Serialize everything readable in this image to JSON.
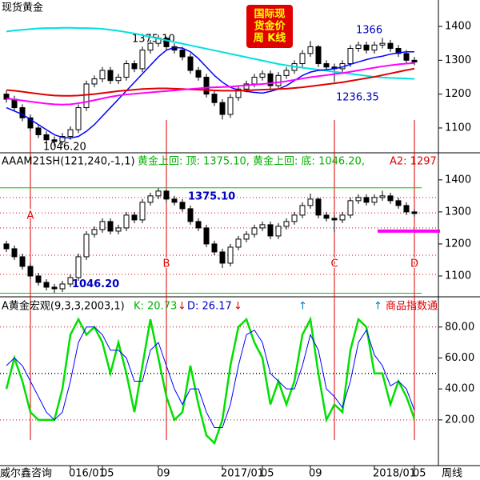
{
  "chart_data": [
    {
      "type": "candlestick",
      "title": "现货黄金",
      "color": "#000000",
      "open": [
        1200,
        1185,
        1160,
        1130,
        1100,
        1080,
        1065,
        1060,
        1075,
        1095,
        1160,
        1230,
        1245,
        1270,
        1240,
        1250,
        1290,
        1275,
        1330,
        1350,
        1365,
        1340,
        1330,
        1310,
        1270,
        1250,
        1200,
        1175,
        1140,
        1190,
        1215,
        1230,
        1250,
        1260,
        1225,
        1255,
        1270,
        1290,
        1320,
        1340,
        1290,
        1280,
        1275,
        1290,
        1335,
        1345,
        1330,
        1345,
        1350,
        1335,
        1320,
        1300
      ],
      "high": [
        1210,
        1195,
        1170,
        1140,
        1110,
        1090,
        1075,
        1085,
        1105,
        1170,
        1240,
        1255,
        1280,
        1280,
        1260,
        1300,
        1300,
        1340,
        1360,
        1375.1,
        1370,
        1350,
        1340,
        1320,
        1280,
        1260,
        1210,
        1185,
        1200,
        1225,
        1240,
        1260,
        1270,
        1270,
        1265,
        1280,
        1300,
        1330,
        1357,
        1345,
        1300,
        1290,
        1300,
        1345,
        1355,
        1355,
        1355,
        1366,
        1360,
        1345,
        1330,
        1310
      ],
      "low": [
        1175,
        1150,
        1120,
        1090,
        1070,
        1055,
        1046.2,
        1050,
        1065,
        1085,
        1150,
        1220,
        1235,
        1230,
        1230,
        1240,
        1265,
        1265,
        1320,
        1340,
        1330,
        1320,
        1300,
        1260,
        1240,
        1190,
        1165,
        1125,
        1130,
        1180,
        1205,
        1220,
        1240,
        1215,
        1215,
        1245,
        1260,
        1280,
        1310,
        1280,
        1270,
        1236.35,
        1265,
        1280,
        1325,
        1320,
        1320,
        1335,
        1325,
        1310,
        1290,
        1285
      ],
      "close": [
        1185,
        1160,
        1130,
        1100,
        1080,
        1065,
        1060,
        1075,
        1095,
        1160,
        1230,
        1245,
        1270,
        1240,
        1250,
        1290,
        1275,
        1330,
        1350,
        1365,
        1340,
        1330,
        1310,
        1270,
        1250,
        1200,
        1175,
        1140,
        1190,
        1215,
        1230,
        1250,
        1260,
        1225,
        1255,
        1270,
        1290,
        1320,
        1340,
        1290,
        1280,
        1275,
        1290,
        1335,
        1345,
        1330,
        1345,
        1350,
        1335,
        1320,
        1300,
        1295
      ],
      "series": [
        {
          "color": "#00e0e0",
          "values": [
            1385,
            1388,
            1390,
            1392,
            1394,
            1395,
            1395,
            1396,
            1396,
            1395,
            1395,
            1394,
            1393,
            1390,
            1387,
            1383,
            1379,
            1374,
            1369,
            1364,
            1359,
            1354,
            1349,
            1344,
            1339,
            1334,
            1329,
            1324,
            1319,
            1314,
            1309,
            1304,
            1299,
            1294,
            1289,
            1285,
            1281,
            1278,
            1275,
            1272,
            1269,
            1266,
            1263,
            1260,
            1257,
            1254,
            1251,
            1249,
            1248,
            1247,
            1246,
            1245
          ]
        },
        {
          "color": "#0000ff",
          "values": [
            1160,
            1150,
            1140,
            1125,
            1110,
            1095,
            1080,
            1072,
            1070,
            1075,
            1090,
            1110,
            1135,
            1160,
            1185,
            1210,
            1235,
            1260,
            1285,
            1310,
            1330,
            1338,
            1336,
            1325,
            1305,
            1280,
            1255,
            1235,
            1220,
            1212,
            1208,
            1205,
            1203,
            1208,
            1215,
            1225,
            1240,
            1255,
            1265,
            1270,
            1272,
            1275,
            1280,
            1288,
            1295,
            1302,
            1308,
            1312,
            1318,
            1322,
            1325,
            1325
          ]
        },
        {
          "color": "#e00000",
          "values": [
            1212,
            1210,
            1207,
            1204,
            1201,
            1198,
            1196,
            1195,
            1195,
            1196,
            1198,
            1200,
            1203,
            1206,
            1209,
            1211,
            1213,
            1215,
            1216,
            1217,
            1217,
            1216,
            1215,
            1214,
            1213,
            1212,
            1211,
            1210,
            1210,
            1210,
            1211,
            1212,
            1213,
            1214,
            1215,
            1216,
            1218,
            1220,
            1223,
            1226,
            1229,
            1232,
            1235,
            1239,
            1243,
            1247,
            1251,
            1256,
            1261,
            1266,
            1271,
            1275
          ]
        },
        {
          "color": "#ff00ff",
          "values": [
            1187,
            1184,
            1181,
            1178,
            1175,
            1172,
            1170,
            1169,
            1170,
            1173,
            1177,
            1182,
            1187,
            1192,
            1196,
            1199,
            1201,
            1203,
            1205,
            1207,
            1209,
            1211,
            1213,
            1215,
            1217,
            1219,
            1220,
            1221,
            1222,
            1224,
            1226,
            1228,
            1230,
            1232,
            1235,
            1238,
            1242,
            1246,
            1250,
            1253,
            1256,
            1259,
            1262,
            1266,
            1270,
            1274,
            1278,
            1282,
            1285,
            1288,
            1290,
            1292
          ]
        }
      ],
      "annotations": [
        "1375.10",
        "1366",
        "1236.35",
        "1046.20"
      ],
      "badge": [
        "国际现",
        "货金价",
        "周 K线"
      ],
      "ylim": [
        1029,
        1478
      ],
      "yticks": [
        1100,
        1200,
        1300,
        1400
      ]
    },
    {
      "type": "levels",
      "title": "AAAM21SH(121,240,-1,1)",
      "subtitle": "黄金上回: 顶: 1375.10, 黄金上回: 底: 1046.20,",
      "note": "A2: 1297.",
      "levels": [
        {
          "value": 1375.1,
          "label": "1375.10"
        },
        {
          "value": 1046.2,
          "label": "1046.20"
        }
      ],
      "reference_levels": [
        1345,
        1297,
        1250,
        1165,
        1105
      ],
      "target": {
        "value": 1240,
        "color": "#ff00ff"
      },
      "events": [
        {
          "label": "A",
          "at": 3
        },
        {
          "label": "B",
          "at": 20
        },
        {
          "label": "C",
          "at": 41
        },
        {
          "label": "D",
          "at": 51
        }
      ],
      "ylim": [
        1037.5,
        1482
      ],
      "yticks": [
        1100,
        1200,
        1300,
        1400
      ]
    },
    {
      "type": "line",
      "title": "A黄金宏观(9,3,3,2003,1)",
      "k_label": "K: 20.73",
      "d_label": "D: 26.17",
      "note": "商品指数通",
      "categories": [
        null,
        null,
        null,
        null,
        null,
        null,
        null,
        null,
        "016/01",
        null,
        null,
        null,
        "05",
        null,
        null,
        null,
        null,
        null,
        null,
        "09",
        null,
        null,
        null,
        null,
        null,
        null,
        null,
        "2017/01",
        null,
        null,
        null,
        null,
        "05",
        null,
        null,
        null,
        null,
        null,
        "09",
        null,
        null,
        null,
        null,
        null,
        null,
        null,
        "2018/01",
        null,
        null,
        null,
        null,
        "05"
      ],
      "series": [
        {
          "color": "#00e000",
          "values": [
            40,
            60,
            45,
            25,
            20,
            20,
            20,
            40,
            75,
            85,
            75,
            80,
            70,
            50,
            70,
            50,
            25,
            55,
            85,
            60,
            35,
            20,
            25,
            55,
            30,
            10,
            5,
            20,
            55,
            80,
            85,
            70,
            60,
            30,
            45,
            30,
            45,
            75,
            85,
            50,
            20,
            30,
            25,
            65,
            85,
            80,
            50,
            50,
            30,
            45,
            35,
            20.73
          ]
        },
        {
          "color": "#0000ff",
          "values": [
            55,
            60,
            55,
            45,
            35,
            25,
            20,
            25,
            45,
            70,
            80,
            80,
            75,
            65,
            65,
            60,
            45,
            45,
            65,
            70,
            55,
            40,
            30,
            40,
            40,
            25,
            15,
            15,
            30,
            55,
            75,
            78,
            70,
            50,
            45,
            40,
            40,
            55,
            75,
            65,
            40,
            35,
            28,
            45,
            70,
            78,
            62,
            55,
            42,
            45,
            40,
            26.17
          ]
        }
      ],
      "reference_levels": [
        80,
        50,
        20
      ],
      "ylim": [
        -8.5,
        99
      ],
      "yticks": [
        {
          "value": 20,
          "label": "20.00"
        },
        {
          "value": 40,
          "label": "40.00"
        },
        {
          "value": 60,
          "label": "60.00"
        },
        {
          "value": 80,
          "label": "80.00"
        }
      ]
    }
  ],
  "footer": {
    "source": "威尔鑫咨询",
    "period": "周线"
  }
}
